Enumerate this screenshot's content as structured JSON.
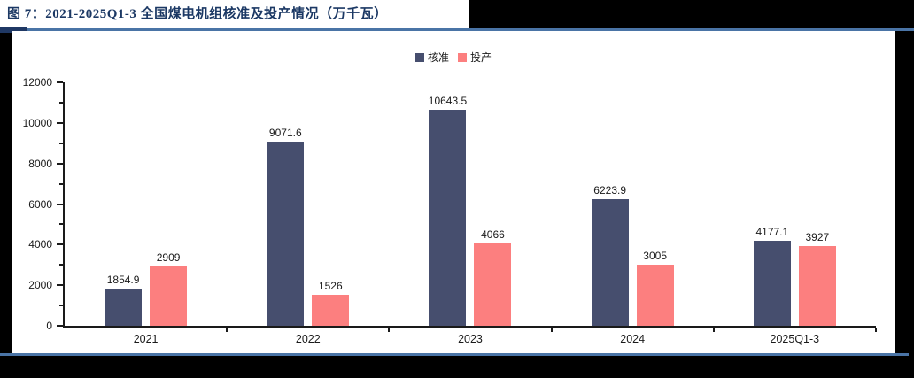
{
  "figure": {
    "title": "图 7：2021-2025Q1-3 全国煤电机组核准及投产情况（万千瓦）"
  },
  "colors": {
    "title_navy": "#1b3864",
    "divider_blue": "#4a74a6",
    "accent_tab_navy": "#1f3864",
    "bar_approved_navy": "#464E6E",
    "bar_commissioned_salmon": "#FC7F7F",
    "panel_background": "#ffffff",
    "outer_background": "#000000",
    "axis_black": "#1a1a1a"
  },
  "legend": {
    "items": [
      {
        "label": "核准",
        "color": "#464E6E"
      },
      {
        "label": "投产",
        "color": "#FC7F7F"
      }
    ]
  },
  "chart_data": {
    "type": "bar",
    "title": "图 7：2021-2025Q1-3 全国煤电机组核准及投产情况（万千瓦）",
    "categories": [
      "2021",
      "2022",
      "2023",
      "2024",
      "2025Q1-3"
    ],
    "series": [
      {
        "name": "核准",
        "color": "#464E6E",
        "values": [
          1854.9,
          9071.6,
          10643.5,
          6223.9,
          4177.1
        ]
      },
      {
        "name": "投产",
        "color": "#FC7F7F",
        "values": [
          2909,
          1526,
          4066,
          3005,
          3927
        ]
      }
    ],
    "xlabel": "",
    "ylabel": "",
    "ylim": [
      0,
      12000
    ],
    "yticks": [
      0,
      2000,
      4000,
      6000,
      8000,
      10000,
      12000
    ],
    "ytick_step": 2000,
    "minor_tick_step": 1000,
    "grid": false,
    "legend_position": "top-center",
    "data_labels": true
  }
}
